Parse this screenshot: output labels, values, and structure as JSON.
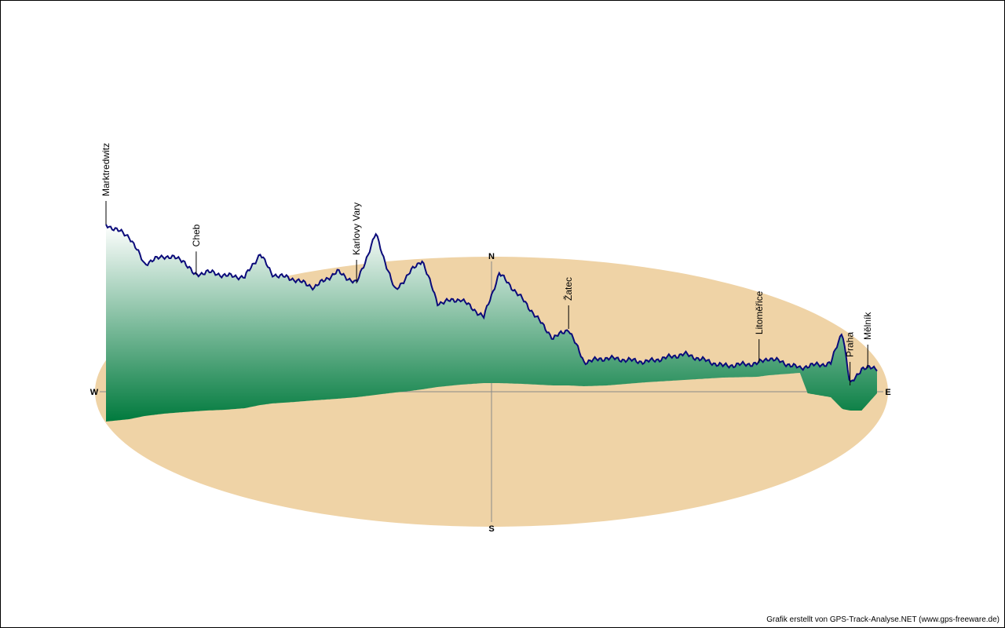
{
  "credit": "Grafik erstellt von GPS-Track-Analyse.NET (www.gps-freeware.de)",
  "colors": {
    "ground": "#efd3a6",
    "profile_top": "#ffffff",
    "profile_bottom": "#007a3d",
    "profile_line": "#0b0b7a",
    "axes": "#888888"
  },
  "chart_data": {
    "type": "area",
    "description_free": true,
    "compass": {
      "north": "N",
      "south": "S",
      "west": "W",
      "east": "E"
    },
    "places": [
      {
        "name": "Marktredwitz",
        "x": 0.0
      },
      {
        "name": "Cheb",
        "x": 0.117
      },
      {
        "name": "Karlovy Vary",
        "x": 0.325
      },
      {
        "name": "Žatec",
        "x": 0.6
      },
      {
        "name": "Litoměřice",
        "x": 0.847
      },
      {
        "name": "Praha",
        "x": 0.965
      },
      {
        "name": "Mělník",
        "x": 0.988
      }
    ],
    "profile": [
      {
        "x": 0.0,
        "top": 285,
        "base": 536
      },
      {
        "x": 0.03,
        "top": 300,
        "base": 533
      },
      {
        "x": 0.05,
        "top": 335,
        "base": 529
      },
      {
        "x": 0.075,
        "top": 325,
        "base": 526
      },
      {
        "x": 0.1,
        "top": 330,
        "base": 524
      },
      {
        "x": 0.115,
        "top": 350,
        "base": 523
      },
      {
        "x": 0.13,
        "top": 345,
        "base": 522
      },
      {
        "x": 0.155,
        "top": 350,
        "base": 521
      },
      {
        "x": 0.18,
        "top": 352,
        "base": 519
      },
      {
        "x": 0.2,
        "top": 322,
        "base": 515
      },
      {
        "x": 0.215,
        "top": 348,
        "base": 513
      },
      {
        "x": 0.245,
        "top": 355,
        "base": 511
      },
      {
        "x": 0.27,
        "top": 365,
        "base": 509
      },
      {
        "x": 0.3,
        "top": 345,
        "base": 507
      },
      {
        "x": 0.325,
        "top": 360,
        "base": 505
      },
      {
        "x": 0.35,
        "top": 297,
        "base": 502
      },
      {
        "x": 0.375,
        "top": 370,
        "base": 499
      },
      {
        "x": 0.395,
        "top": 345,
        "base": 497
      },
      {
        "x": 0.41,
        "top": 330,
        "base": 495
      },
      {
        "x": 0.43,
        "top": 385,
        "base": 492
      },
      {
        "x": 0.46,
        "top": 380,
        "base": 489
      },
      {
        "x": 0.49,
        "top": 403,
        "base": 487
      },
      {
        "x": 0.51,
        "top": 347,
        "base": 487
      },
      {
        "x": 0.54,
        "top": 380,
        "base": 488
      },
      {
        "x": 0.58,
        "top": 430,
        "base": 490
      },
      {
        "x": 0.6,
        "top": 418,
        "base": 490
      },
      {
        "x": 0.62,
        "top": 460,
        "base": 491
      },
      {
        "x": 0.65,
        "top": 455,
        "base": 490
      },
      {
        "x": 0.7,
        "top": 460,
        "base": 486
      },
      {
        "x": 0.75,
        "top": 450,
        "base": 483
      },
      {
        "x": 0.8,
        "top": 465,
        "base": 480
      },
      {
        "x": 0.845,
        "top": 462,
        "base": 479
      },
      {
        "x": 0.86,
        "top": 455,
        "base": 477
      },
      {
        "x": 0.9,
        "top": 468,
        "base": 474
      },
      {
        "x": 0.91,
        "top": 465,
        "base": 500
      },
      {
        "x": 0.94,
        "top": 462,
        "base": 505
      },
      {
        "x": 0.955,
        "top": 420,
        "base": 520
      },
      {
        "x": 0.965,
        "top": 490,
        "base": 522
      },
      {
        "x": 0.98,
        "top": 468,
        "base": 522
      },
      {
        "x": 1.0,
        "top": 468,
        "base": 500
      }
    ]
  }
}
